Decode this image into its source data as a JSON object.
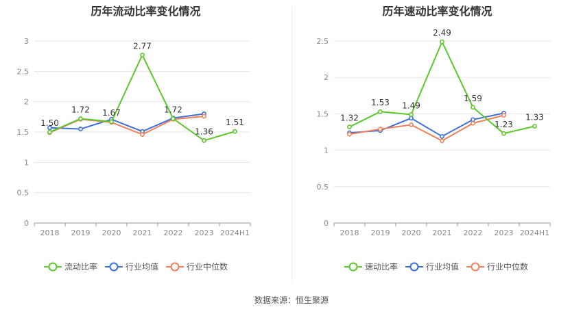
{
  "source_text": "数据来源：恒生聚源",
  "chart_data": [
    {
      "type": "line",
      "title": "历年流动比率变化情况",
      "x": [
        "2018",
        "2019",
        "2020",
        "2021",
        "2022",
        "2023",
        "2024H1"
      ],
      "ylim": [
        0,
        3
      ],
      "yticks": [
        0,
        0.5,
        1,
        1.5,
        2,
        2.5,
        3
      ],
      "ytick_labels": [
        "0",
        "0.5",
        "1",
        "1.5",
        "2",
        "2.5",
        "3"
      ],
      "grid": true,
      "legend_position": "bottom",
      "series": [
        {
          "name": "流动比率",
          "color": "#5cc72a",
          "values": [
            1.5,
            1.72,
            1.67,
            2.77,
            1.72,
            1.36,
            1.51
          ],
          "labels": [
            "1.50",
            "1.72",
            "1.67",
            "2.77",
            "1.72",
            "1.36",
            "1.51"
          ]
        },
        {
          "name": "行业均值",
          "color": "#3d6fdb",
          "values": [
            1.57,
            1.55,
            1.71,
            1.51,
            1.73,
            1.8,
            null
          ]
        },
        {
          "name": "行业中位数",
          "color": "#f07f57",
          "values": [
            1.49,
            1.71,
            1.66,
            1.46,
            1.71,
            1.76,
            null
          ]
        }
      ]
    },
    {
      "type": "line",
      "title": "历年速动比率变化情况",
      "x": [
        "2018",
        "2019",
        "2020",
        "2021",
        "2022",
        "2023",
        "2024H1"
      ],
      "ylim": [
        0,
        2.5
      ],
      "yticks": [
        0,
        0.5,
        1,
        1.5,
        2,
        2.5
      ],
      "ytick_labels": [
        "0",
        "0.5",
        "1",
        "1.5",
        "2",
        "2.5"
      ],
      "grid": true,
      "legend_position": "bottom",
      "series": [
        {
          "name": "速动比率",
          "color": "#5cc72a",
          "values": [
            1.32,
            1.53,
            1.49,
            2.49,
            1.59,
            1.23,
            1.33
          ],
          "labels": [
            "1.32",
            "1.53",
            "1.49",
            "2.49",
            "1.59",
            "1.23",
            "1.33"
          ]
        },
        {
          "name": "行业均值",
          "color": "#3d6fdb",
          "values": [
            1.24,
            1.27,
            1.44,
            1.19,
            1.42,
            1.51,
            null
          ]
        },
        {
          "name": "行业中位数",
          "color": "#f07f57",
          "values": [
            1.22,
            1.29,
            1.35,
            1.13,
            1.37,
            1.48,
            null
          ]
        }
      ]
    }
  ]
}
